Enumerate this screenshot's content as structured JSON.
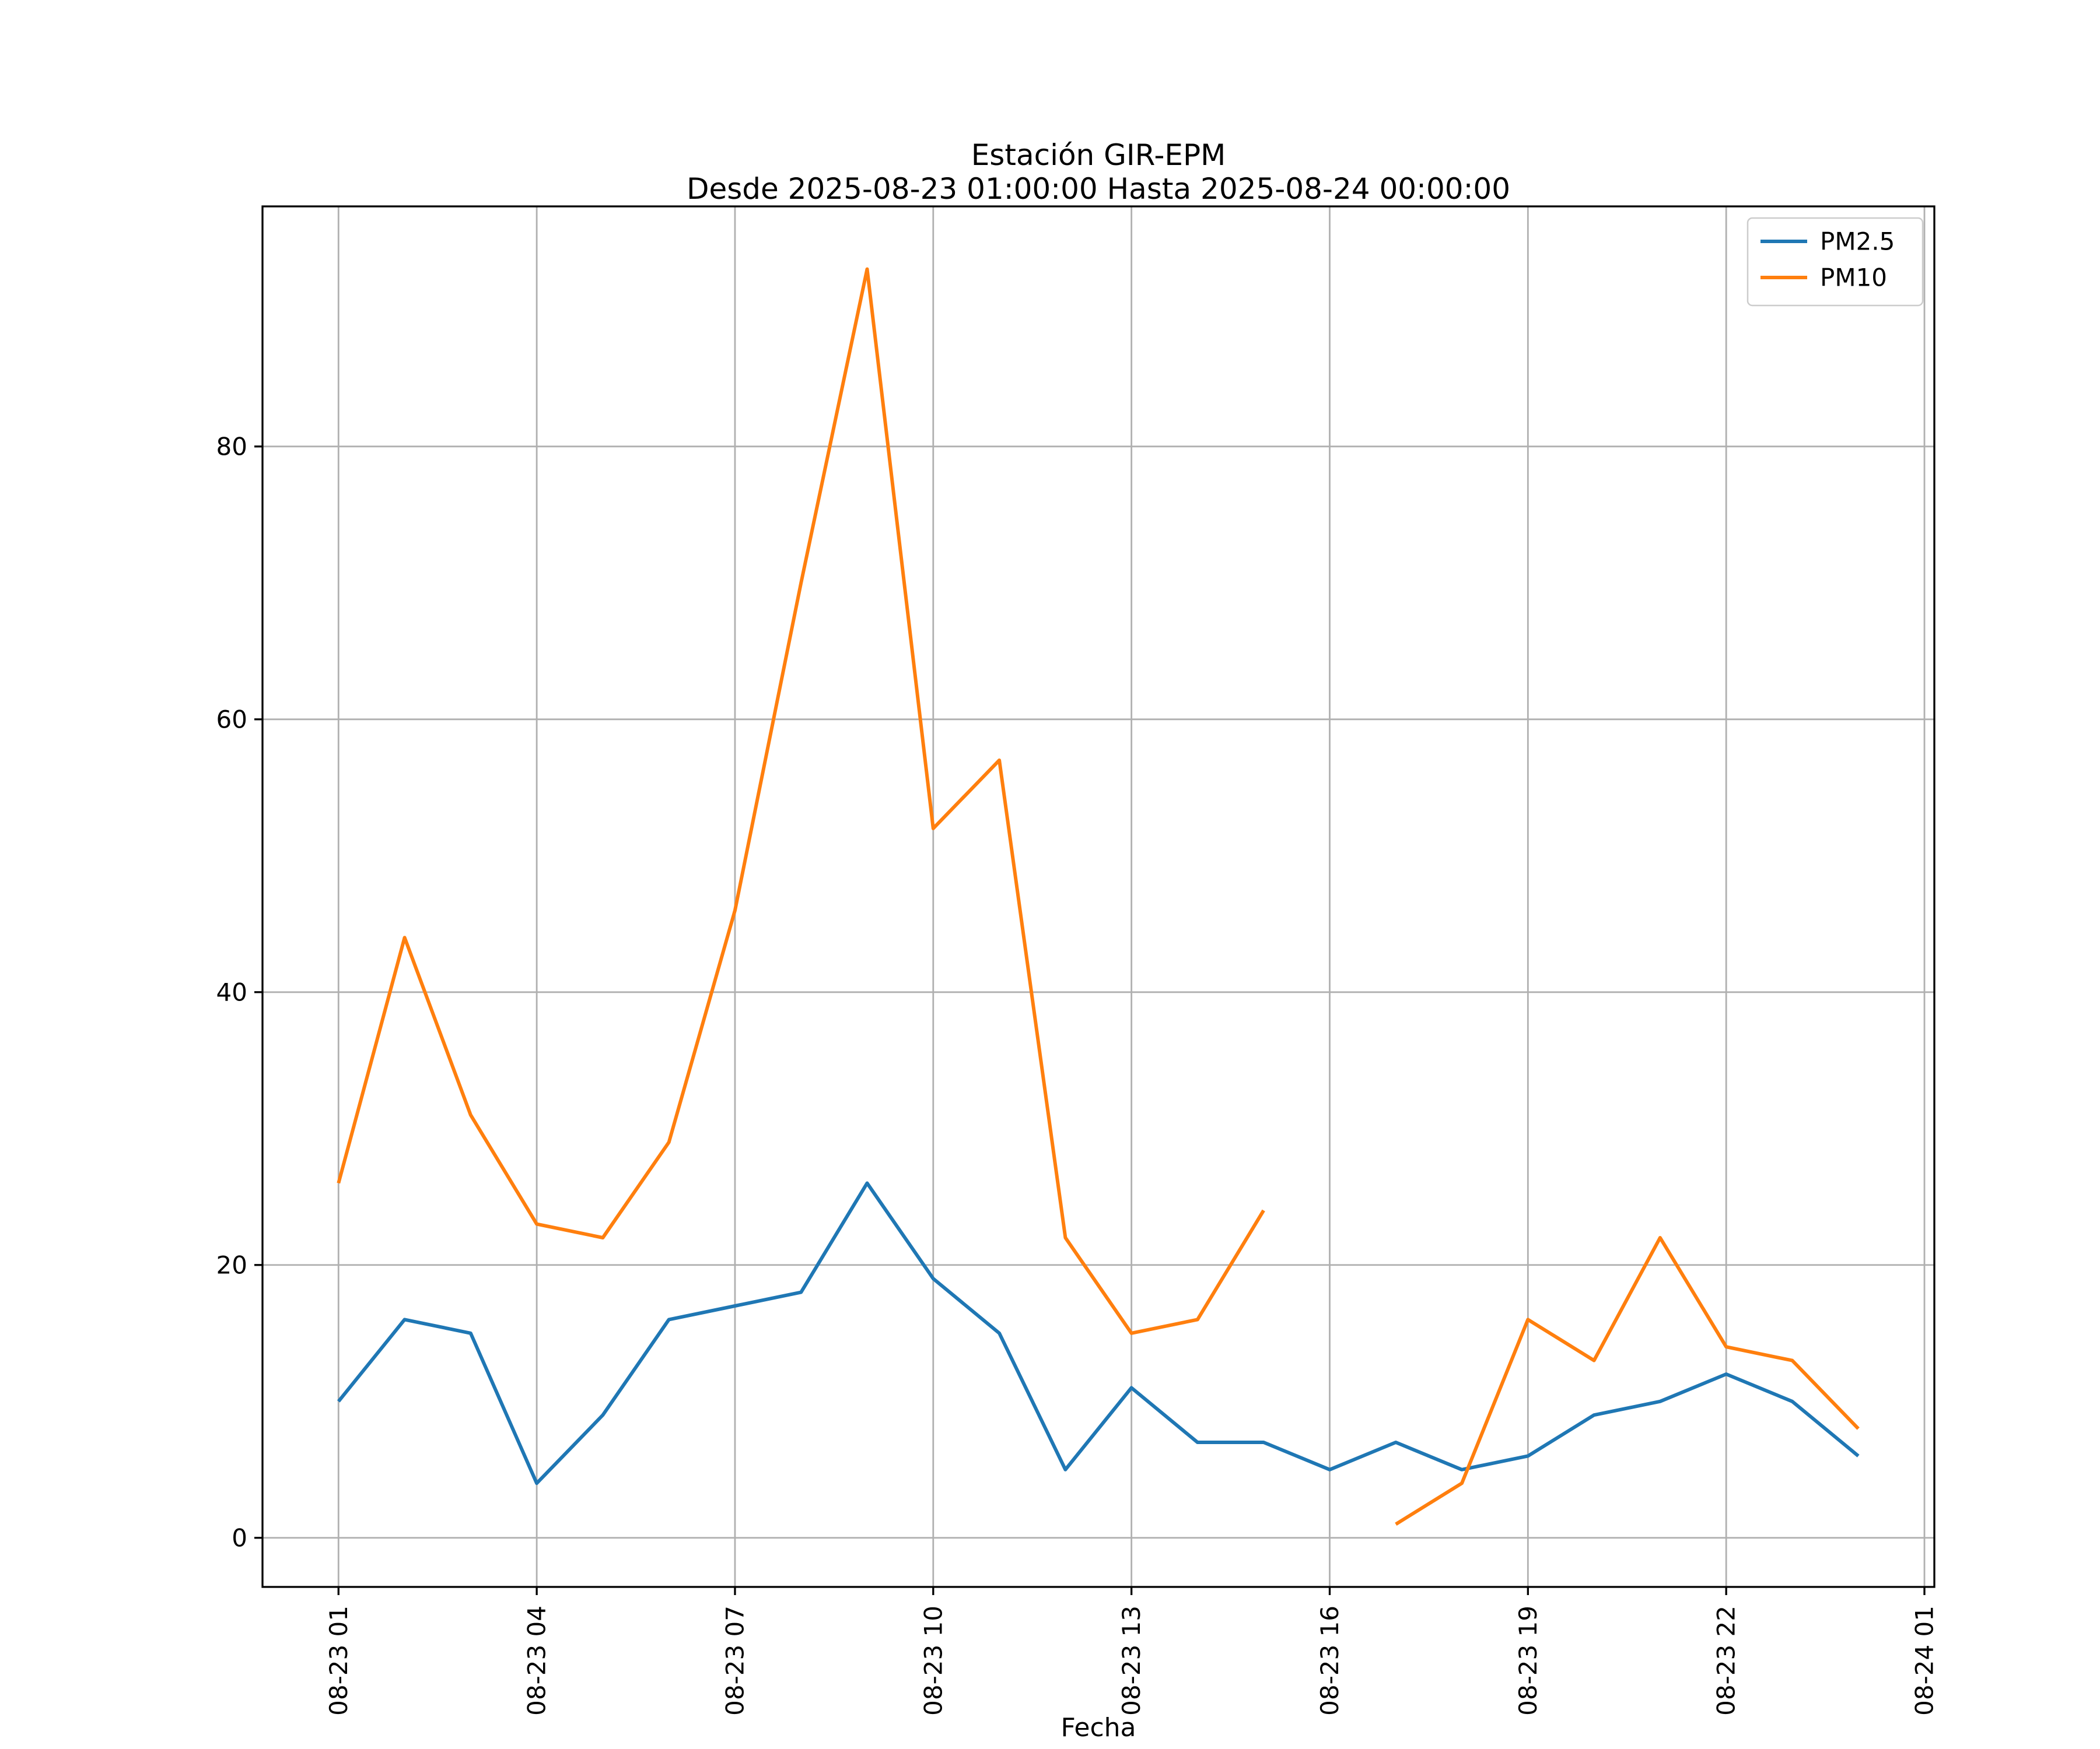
{
  "figure": {
    "background": "#ffffff"
  },
  "chart_data": {
    "type": "line",
    "title": "Estación GIR-EPM",
    "subtitle": "Desde 2025-08-23 01:00:00 Hasta 2025-08-24 00:00:00",
    "xlabel": "Fecha",
    "ylabel": "",
    "grid": true,
    "legend_position": "upper right",
    "x": [
      1,
      2,
      3,
      4,
      5,
      6,
      7,
      8,
      9,
      10,
      11,
      12,
      13,
      14,
      15,
      16,
      17,
      18,
      19,
      20,
      21,
      22,
      23,
      24
    ],
    "series": [
      {
        "name": "PM2.5",
        "color": "#1f77b4",
        "values": [
          10,
          16,
          15,
          4,
          9,
          16,
          17,
          18,
          26,
          19,
          15,
          5,
          11,
          7,
          7,
          5,
          7,
          5,
          6,
          9,
          10,
          12,
          10,
          6
        ]
      },
      {
        "name": "PM10",
        "color": "#ff7f0e",
        "values": [
          26,
          44,
          31,
          23,
          22,
          29,
          46,
          70,
          93,
          52,
          57,
          22,
          15,
          16,
          24,
          null,
          1,
          4,
          16,
          13,
          22,
          14,
          13,
          8
        ]
      }
    ],
    "xticks": [
      {
        "value": 1,
        "label": "08-23 01"
      },
      {
        "value": 4,
        "label": "08-23 04"
      },
      {
        "value": 7,
        "label": "08-23 07"
      },
      {
        "value": 10,
        "label": "08-23 10"
      },
      {
        "value": 13,
        "label": "08-23 13"
      },
      {
        "value": 16,
        "label": "08-23 16"
      },
      {
        "value": 19,
        "label": "08-23 19"
      },
      {
        "value": 22,
        "label": "08-23 22"
      },
      {
        "value": 25,
        "label": "08-24 01"
      }
    ],
    "yticks": [
      0,
      20,
      40,
      60,
      80
    ],
    "xlim": [
      -0.15,
      25.15
    ],
    "ylim": [
      -3.6,
      97.6
    ]
  }
}
